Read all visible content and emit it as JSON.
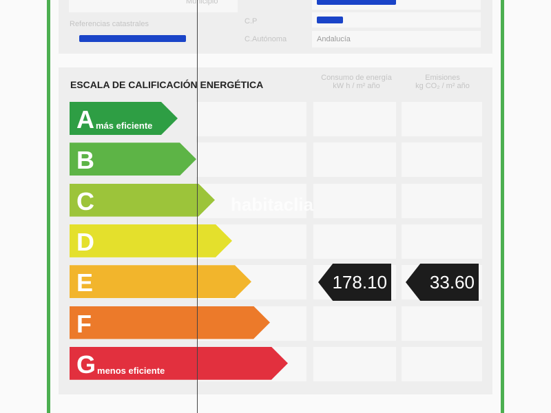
{
  "header": {
    "municipio_label": "Municipio",
    "referencias_label": "Referencias catastrales",
    "cp_label": "C.P",
    "ca_label": "C.Autónoma",
    "ca_value": "Andalucía"
  },
  "scale": {
    "title": "ESCALA DE CALIFICACIÓN ENERGÉTICA",
    "col_energy": "Consumo de energía",
    "col_energy_unit": "kW h / m² año",
    "col_emissions": "Emisiones",
    "col_emissions_unit": "kg CO₂ / m² año",
    "classes": [
      {
        "letter": "A",
        "sub": "más eficiente",
        "color": "#2e9e44"
      },
      {
        "letter": "B",
        "sub": "",
        "color": "#5db446"
      },
      {
        "letter": "C",
        "sub": "",
        "color": "#9cc43a"
      },
      {
        "letter": "D",
        "sub": "",
        "color": "#e4e02c"
      },
      {
        "letter": "E",
        "sub": "",
        "color": "#f2b52c"
      },
      {
        "letter": "F",
        "sub": "",
        "color": "#ec7a2a"
      },
      {
        "letter": "G",
        "sub": "menos eficiente",
        "color": "#e2303e"
      }
    ],
    "rating_class": "E",
    "energy_value": "178.10",
    "emissions_value": "33.60"
  },
  "watermark": "habitaclia"
}
